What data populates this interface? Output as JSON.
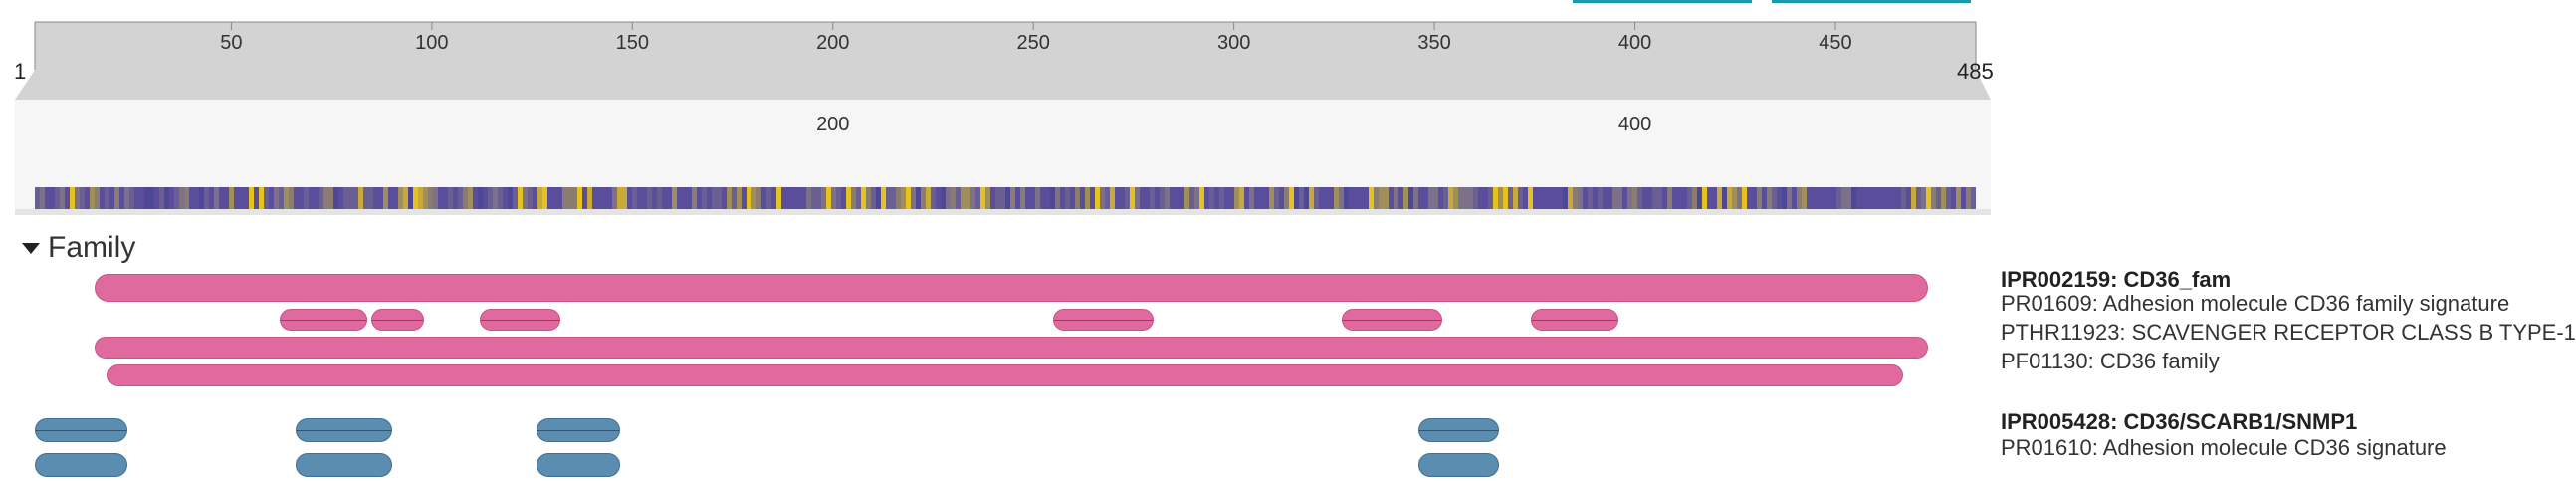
{
  "sequence": {
    "start_label": "1",
    "end_label": "485",
    "length": 485
  },
  "top_buttons": [
    {
      "name": "top-button-1",
      "color": "#1a9aa6"
    },
    {
      "name": "top-button-2",
      "color": "#1a9aa6"
    }
  ],
  "ruler": {
    "ticks": [
      "50",
      "100",
      "150",
      "200",
      "250",
      "300",
      "350",
      "400",
      "450"
    ]
  },
  "zoom_ruler": {
    "ticks": [
      "200",
      "400"
    ]
  },
  "section": {
    "title": "Family",
    "collapsed": false
  },
  "tracks": [
    {
      "label": "IPR002159: CD36_fam",
      "bold": true,
      "color": "#e0699d",
      "segments": [
        [
          16,
          473
        ]
      ]
    },
    {
      "label": "PR01609: Adhesion molecule CD36 family signature",
      "bold": false,
      "color": "#e0699d",
      "split": true,
      "segments": [
        [
          62,
          84
        ],
        [
          85,
          98
        ],
        [
          112,
          132
        ],
        [
          255,
          280
        ],
        [
          327,
          352
        ],
        [
          374,
          396
        ]
      ]
    },
    {
      "label": "PTHR11923: SCAVENGER RECEPTOR CLASS B TYPE-1",
      "bold": false,
      "color": "#e0699d",
      "segments": [
        [
          16,
          473
        ]
      ]
    },
    {
      "label": "PF01130: CD36 family",
      "bold": false,
      "color": "#e0699d",
      "segments": [
        [
          19,
          467
        ]
      ]
    },
    {
      "label": "IPR005428: CD36/SCARB1/SNMP1",
      "bold": true,
      "color": "#5b8db1",
      "split": true,
      "segments": [
        [
          1,
          24
        ],
        [
          66,
          90
        ],
        [
          126,
          147
        ],
        [
          346,
          366
        ]
      ]
    },
    {
      "label": "PR01610: Adhesion molecule CD36 signature",
      "bold": false,
      "color": "#5b8db1",
      "segments": [
        [
          1,
          24
        ],
        [
          66,
          90
        ],
        [
          126,
          147
        ],
        [
          346,
          366
        ]
      ]
    }
  ],
  "colors": {
    "family_pink": "#e0699d",
    "domain_blue": "#5b8db1",
    "teal": "#1a9aa6",
    "ruler_gray": "#d3d3d3"
  }
}
